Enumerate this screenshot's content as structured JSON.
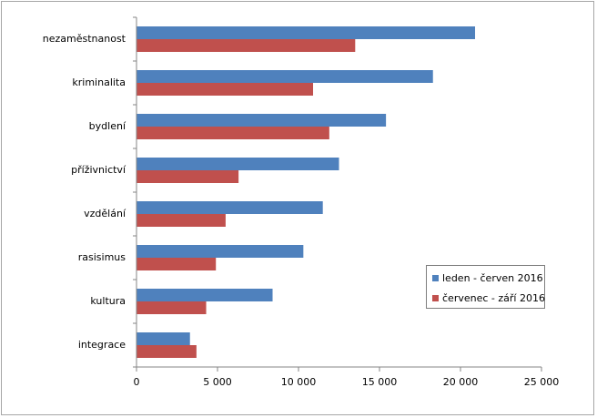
{
  "chart_data": {
    "type": "bar",
    "orientation": "horizontal",
    "categories": [
      "nezaměstnanost",
      "kriminalita",
      "bydlení",
      "příživnictví",
      "vzdělání",
      "rasisimus",
      "kultura",
      "integrace"
    ],
    "series": [
      {
        "name": "leden - červen 2016",
        "color": "#4f81bd",
        "values": [
          20900,
          18300,
          15400,
          12500,
          11500,
          10300,
          8400,
          3300
        ]
      },
      {
        "name": "červenec - září 2016",
        "color": "#c0504d",
        "values": [
          13500,
          10900,
          11900,
          6300,
          5500,
          4900,
          4300,
          3700
        ]
      }
    ],
    "xlim": [
      0,
      25000
    ],
    "xticks": [
      0,
      5000,
      10000,
      15000,
      20000,
      25000
    ],
    "xtick_labels": [
      "0",
      "5 000",
      "10 000",
      "15 000",
      "20 000",
      "25 000"
    ],
    "grid": false,
    "legend_position": "right"
  }
}
